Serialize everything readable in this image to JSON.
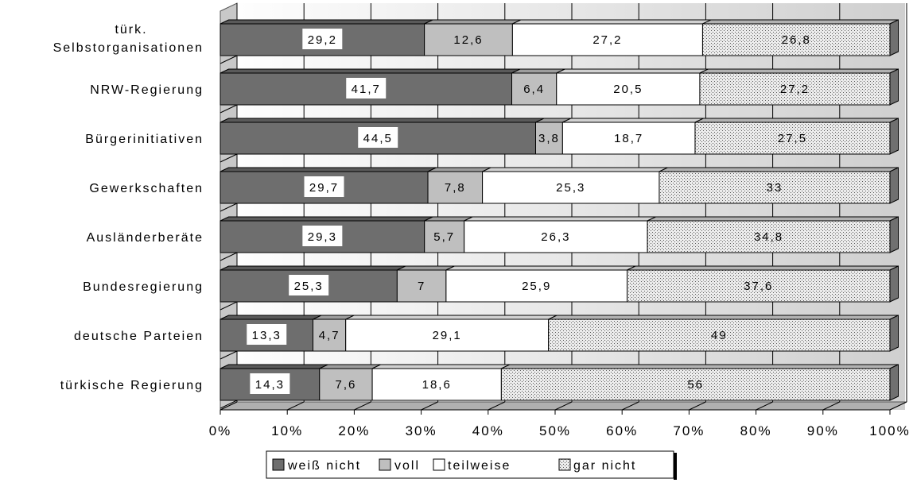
{
  "chart_data": {
    "type": "bar",
    "orientation": "horizontal",
    "stacking": "percent",
    "categories": [
      "türk. Selbstorganisationen",
      "NRW-Regierung",
      "Bürgerinitiativen",
      "Gewerkschaften",
      "Ausländerberäte",
      "Bundesregierung",
      "deutsche Parteien",
      "türkische Regierung"
    ],
    "category_lines": [
      [
        "türk.",
        "Selbstorganisationen"
      ],
      [
        "NRW-Regierung"
      ],
      [
        "Bürgerinitiativen"
      ],
      [
        "Gewerkschaften"
      ],
      [
        "Ausländerberäte"
      ],
      [
        "Bundesregierung"
      ],
      [
        "deutsche Parteien"
      ],
      [
        "türkische Regierung"
      ]
    ],
    "series": [
      {
        "name": "weiß nicht",
        "color": "#6e6e6e",
        "values": [
          29.2,
          41.7,
          44.5,
          29.7,
          29.3,
          25.3,
          13.3,
          14.3
        ]
      },
      {
        "name": "voll",
        "color": "#bfbfbf",
        "values": [
          12.6,
          6.4,
          3.8,
          7.8,
          5.7,
          7,
          4.7,
          7.6
        ]
      },
      {
        "name": "teilweise",
        "color": "#ffffff",
        "values": [
          27.2,
          20.5,
          18.7,
          25.3,
          26.3,
          25.9,
          29.1,
          18.6
        ]
      },
      {
        "name": "gar nicht",
        "color": "#e6e6e6",
        "pattern": "dotted",
        "values": [
          26.8,
          27.2,
          27.5,
          33,
          34.8,
          37.6,
          49,
          56
        ]
      }
    ],
    "value_labels": [
      [
        "29,2",
        "12,6",
        "27,2",
        "26,8"
      ],
      [
        "41,7",
        "6,4",
        "20,5",
        "27,2"
      ],
      [
        "44,5",
        "3,8",
        "18,7",
        "27,5"
      ],
      [
        "29,7",
        "7,8",
        "25,3",
        "33"
      ],
      [
        "29,3",
        "5,7",
        "26,3",
        "34,8"
      ],
      [
        "25,3",
        "7",
        "25,9",
        "37,6"
      ],
      [
        "13,3",
        "4,7",
        "29,1",
        "49"
      ],
      [
        "14,3",
        "7,6",
        "18,6",
        "56"
      ]
    ],
    "xlim": [
      0,
      100
    ],
    "x_ticks": [
      "0%",
      "10%",
      "20%",
      "30%",
      "40%",
      "50%",
      "60%",
      "70%",
      "80%",
      "90%",
      "100%"
    ],
    "grid": true,
    "three_d": true,
    "legend_position": "bottom"
  }
}
